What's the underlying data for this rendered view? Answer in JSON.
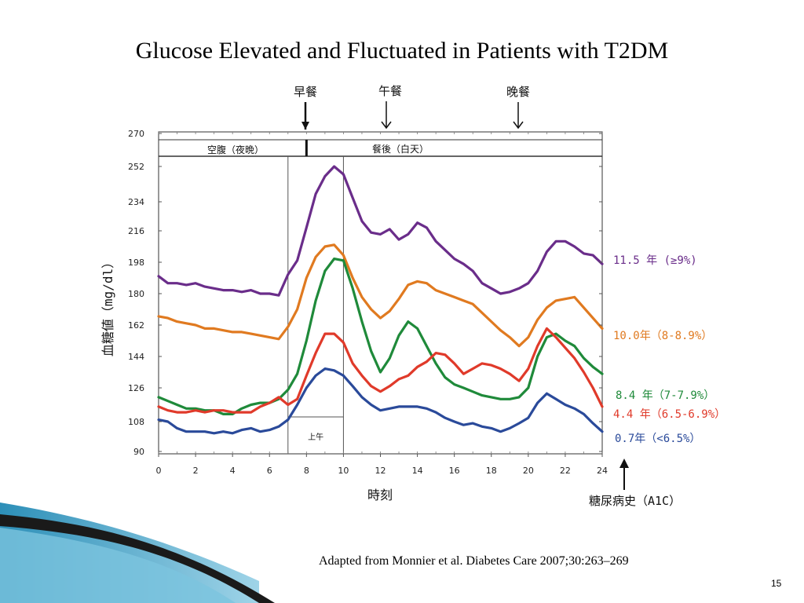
{
  "slide": {
    "title": "Glucose Elevated  and Fluctuated in Patients with T2DM",
    "citation": "Adapted from Monnier et al. Diabetes Care 2007;30:263–269",
    "page_number": "15"
  },
  "chart_data": {
    "type": "line",
    "xlabel": "時刻",
    "ylabel": "血糖値（mg/dl）",
    "xlim": [
      0,
      24
    ],
    "ylim": [
      90,
      270
    ],
    "x_ticks": [
      "0",
      "2",
      "4",
      "6",
      "8",
      "10",
      "12",
      "14",
      "16",
      "18",
      "20",
      "22",
      "24"
    ],
    "y_ticks": [
      "270",
      "252",
      "234",
      "216",
      "198",
      "180",
      "162",
      "144",
      "126",
      "108",
      "90"
    ],
    "y_tick_values": [
      270,
      252,
      234,
      216,
      198,
      180,
      162,
      144,
      126,
      108,
      90
    ],
    "meal_markers": [
      {
        "label": "早餐",
        "x": 8.0
      },
      {
        "label": "午餐",
        "x": 12.3
      },
      {
        "label": "晚餐",
        "x": 19.5
      }
    ],
    "period_labels": {
      "fasting": "空腹（夜晩）",
      "postprandial": "餐後（白天）",
      "morning": "上午"
    },
    "legend_title": "糖尿病史（A1C）",
    "series": [
      {
        "name": "11.5 年 (≥9%)",
        "color": "#6a2d8a",
        "x": [
          0,
          0.5,
          1,
          1.5,
          2,
          2.5,
          3,
          3.5,
          4,
          4.5,
          5,
          5.5,
          6,
          6.5,
          7,
          7.5,
          8,
          8.5,
          9,
          9.5,
          10,
          10.5,
          11,
          11.5,
          12,
          12.5,
          13,
          13.5,
          14,
          14.5,
          15,
          15.5,
          16,
          16.5,
          17,
          17.5,
          18,
          18.5,
          19,
          19.5,
          20,
          20.5,
          21,
          21.5,
          22,
          22.5,
          23,
          23.5,
          24
        ],
        "y": [
          190,
          186,
          186,
          185,
          186,
          184,
          183,
          182,
          182,
          181,
          182,
          180,
          180,
          179,
          191,
          199,
          218,
          238,
          247,
          252,
          248,
          236,
          222,
          215,
          214,
          217,
          211,
          214,
          221,
          218,
          210,
          205,
          200,
          197,
          193,
          186,
          183,
          180,
          181,
          183,
          186,
          193,
          204,
          210,
          210,
          207,
          203,
          202,
          197
        ]
      },
      {
        "name": "10.0年（8-8.9%）",
        "color": "#e07a20",
        "x": [
          0,
          0.5,
          1,
          1.5,
          2,
          2.5,
          3,
          3.5,
          4,
          4.5,
          5,
          5.5,
          6,
          6.5,
          7,
          7.5,
          8,
          8.5,
          9,
          9.5,
          10,
          10.5,
          11,
          11.5,
          12,
          12.5,
          13,
          13.5,
          14,
          14.5,
          15,
          15.5,
          16,
          16.5,
          17,
          17.5,
          18,
          18.5,
          19,
          19.5,
          20,
          20.5,
          21,
          21.5,
          22,
          22.5,
          23,
          23.5,
          24
        ],
        "y": [
          167,
          166,
          164,
          163,
          162,
          160,
          160,
          159,
          158,
          158,
          157,
          156,
          155,
          154,
          161,
          171,
          189,
          201,
          207,
          208,
          202,
          189,
          178,
          171,
          166,
          170,
          177,
          185,
          187,
          186,
          182,
          180,
          178,
          176,
          174,
          169,
          164,
          159,
          155,
          150,
          155,
          165,
          172,
          176,
          177,
          178,
          172,
          166,
          160
        ]
      },
      {
        "name": "8.4 年（7-7.9%）",
        "color": "#1f8a3a",
        "x": [
          0,
          0.5,
          1,
          1.5,
          2,
          2.5,
          3,
          3.5,
          4,
          4.5,
          5,
          5.5,
          6,
          6.5,
          7,
          7.5,
          8,
          8.5,
          9,
          9.5,
          10,
          10.5,
          11,
          11.5,
          12,
          12.5,
          13,
          13.5,
          14,
          14.5,
          15,
          15.5,
          16,
          16.5,
          17,
          17.5,
          18,
          18.5,
          19,
          19.5,
          20,
          20.5,
          21,
          21.5,
          22,
          22.5,
          23,
          23.5,
          24
        ],
        "y": [
          121,
          119,
          117,
          115,
          115,
          114,
          114,
          112,
          112,
          115,
          117,
          118,
          118,
          120,
          125,
          134,
          153,
          176,
          193,
          200,
          199,
          183,
          164,
          147,
          135,
          143,
          156,
          164,
          160,
          150,
          140,
          132,
          128,
          126,
          124,
          122,
          121,
          120,
          120,
          121,
          126,
          144,
          155,
          157,
          153,
          150,
          143,
          138,
          134
        ]
      },
      {
        "name": "4.4 年（6.5-6.9%）",
        "color": "#e03a2a",
        "x": [
          0,
          0.5,
          1,
          1.5,
          2,
          2.5,
          3,
          3.5,
          4,
          4.5,
          5,
          5.5,
          6,
          6.5,
          7,
          7.5,
          8,
          8.5,
          9,
          9.5,
          10,
          10.5,
          11,
          11.5,
          12,
          12.5,
          13,
          13.5,
          14,
          14.5,
          15,
          15.5,
          16,
          16.5,
          17,
          17.5,
          18,
          18.5,
          19,
          19.5,
          20,
          20.5,
          21,
          21.5,
          22,
          22.5,
          23,
          23.5,
          24
        ],
        "y": [
          116,
          114,
          113,
          113,
          114,
          113,
          114,
          114,
          113,
          113,
          113,
          116,
          118,
          121,
          117,
          120,
          133,
          146,
          157,
          157,
          152,
          140,
          133,
          127,
          124,
          127,
          131,
          133,
          138,
          141,
          146,
          145,
          140,
          134,
          137,
          140,
          139,
          137,
          134,
          130,
          137,
          150,
          160,
          155,
          149,
          143,
          135,
          126,
          116
        ]
      },
      {
        "name": "0.7年（<6.5%）",
        "color": "#2a4a9a",
        "x": [
          0,
          0.5,
          1,
          1.5,
          2,
          2.5,
          3,
          3.5,
          4,
          4.5,
          5,
          5.5,
          6,
          6.5,
          7,
          7.5,
          8,
          8.5,
          9,
          9.5,
          10,
          10.5,
          11,
          11.5,
          12,
          12.5,
          13,
          13.5,
          14,
          14.5,
          15,
          15.5,
          16,
          16.5,
          17,
          17.5,
          18,
          18.5,
          19,
          19.5,
          20,
          20.5,
          21,
          21.5,
          22,
          22.5,
          23,
          23.5,
          24
        ],
        "y": [
          109,
          108,
          104,
          102,
          102,
          102,
          101,
          102,
          101,
          103,
          104,
          102,
          103,
          105,
          109,
          117,
          126,
          133,
          137,
          136,
          133,
          127,
          121,
          117,
          114,
          115,
          116,
          116,
          116,
          115,
          113,
          110,
          108,
          106,
          107,
          105,
          104,
          102,
          104,
          107,
          110,
          118,
          123,
          120,
          117,
          115,
          112,
          107,
          102
        ]
      }
    ]
  }
}
